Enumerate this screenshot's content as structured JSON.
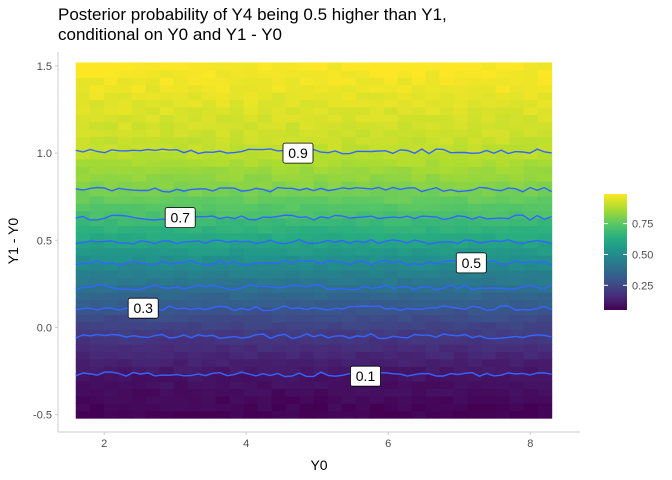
{
  "chart_data": {
    "type": "heatmap",
    "title_lines": [
      "Posterior probability of Y4 being 0.5 higher than Y1,",
      "conditional on Y0 and Y1 - Y0"
    ],
    "xlabel": "Y0",
    "ylabel": "Y1 - Y0",
    "x_range": [
      1.6,
      8.3
    ],
    "y_range": [
      -0.52,
      1.52
    ],
    "xlim": [
      1.35,
      8.7
    ],
    "ylim": [
      -0.6,
      1.58
    ],
    "x_ticks": [
      2,
      4,
      6,
      8
    ],
    "x_tick_labels": [
      "2",
      "4",
      "6",
      "8"
    ],
    "y_ticks": [
      -0.5,
      0.0,
      0.5,
      1.0,
      1.5
    ],
    "y_tick_labels": [
      "-0.5",
      "0.0",
      "0.5",
      "1.0",
      "1.5"
    ],
    "colorscale": "viridis",
    "fill_range": [
      0.05,
      0.99
    ],
    "legend": {
      "position": "right",
      "ticks": [
        0.25,
        0.5,
        0.75
      ],
      "tick_labels": [
        "0.25",
        "0.50",
        "0.75"
      ]
    },
    "contours": [
      {
        "level": 0.1,
        "y": -0.27
      },
      {
        "level": 0.2,
        "y": -0.05
      },
      {
        "level": 0.3,
        "y": 0.11
      },
      {
        "level": 0.4,
        "y": 0.23
      },
      {
        "level": 0.5,
        "y": 0.37
      },
      {
        "level": 0.6,
        "y": 0.49
      },
      {
        "level": 0.7,
        "y": 0.63
      },
      {
        "level": 0.8,
        "y": 0.79
      },
      {
        "level": 0.9,
        "y": 1.01
      }
    ],
    "contour_color": "#3366ff",
    "contour_labels": [
      {
        "text": "0.9",
        "x": 4.73,
        "y": 1.0
      },
      {
        "text": "0.7",
        "x": 3.07,
        "y": 0.63
      },
      {
        "text": "0.5",
        "x": 7.17,
        "y": 0.37
      },
      {
        "text": "0.3",
        "x": 2.55,
        "y": 0.11
      },
      {
        "text": "0.1",
        "x": 5.68,
        "y": -0.28
      }
    ]
  }
}
